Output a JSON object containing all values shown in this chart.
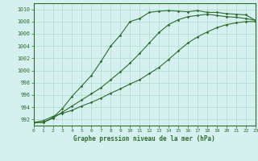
{
  "title": "Graphe pression niveau de la mer (hPa)",
  "bg_color": "#d6f0f0",
  "grid_color": "#aaddcc",
  "line_color": "#2d6e2d",
  "xlim": [
    0,
    23
  ],
  "ylim": [
    991,
    1011
  ],
  "yticks": [
    992,
    994,
    996,
    998,
    1000,
    1002,
    1004,
    1006,
    1008,
    1010
  ],
  "xticks": [
    0,
    1,
    2,
    3,
    4,
    5,
    6,
    7,
    8,
    9,
    10,
    11,
    12,
    13,
    14,
    15,
    16,
    17,
    18,
    19,
    20,
    21,
    22,
    23
  ],
  "series1": {
    "x": [
      0,
      1,
      2,
      3,
      4,
      5,
      6,
      7,
      8,
      9,
      10,
      11,
      12,
      13,
      14,
      15,
      16,
      17,
      18,
      19,
      20,
      21,
      22,
      23
    ],
    "y": [
      991.5,
      991.5,
      992.3,
      993.8,
      995.8,
      997.5,
      999.2,
      1001.5,
      1004.0,
      1005.8,
      1008.0,
      1008.5,
      1009.5,
      1009.7,
      1009.8,
      1009.7,
      1009.6,
      1009.8,
      1009.5,
      1009.5,
      1009.3,
      1009.2,
      1009.1,
      1008.2
    ]
  },
  "series2": {
    "x": [
      0,
      1,
      2,
      3,
      4,
      5,
      6,
      7,
      8,
      9,
      10,
      11,
      12,
      13,
      14,
      15,
      16,
      17,
      18,
      19,
      20,
      21,
      22,
      23
    ],
    "y": [
      991.5,
      991.5,
      992.2,
      993.2,
      994.2,
      995.2,
      996.2,
      997.2,
      998.5,
      999.8,
      1001.2,
      1002.8,
      1004.5,
      1006.2,
      1007.5,
      1008.3,
      1008.8,
      1009.0,
      1009.2,
      1009.0,
      1008.8,
      1008.7,
      1008.5,
      1008.2
    ]
  },
  "series3": {
    "x": [
      0,
      1,
      2,
      3,
      4,
      5,
      6,
      7,
      8,
      9,
      10,
      11,
      12,
      13,
      14,
      15,
      16,
      17,
      18,
      19,
      20,
      21,
      22,
      23
    ],
    "y": [
      991.5,
      991.8,
      992.5,
      993.0,
      993.5,
      994.2,
      994.8,
      995.5,
      996.3,
      997.0,
      997.8,
      998.5,
      999.5,
      1000.5,
      1001.8,
      1003.2,
      1004.5,
      1005.5,
      1006.3,
      1007.0,
      1007.5,
      1007.8,
      1008.0,
      1008.0
    ]
  }
}
